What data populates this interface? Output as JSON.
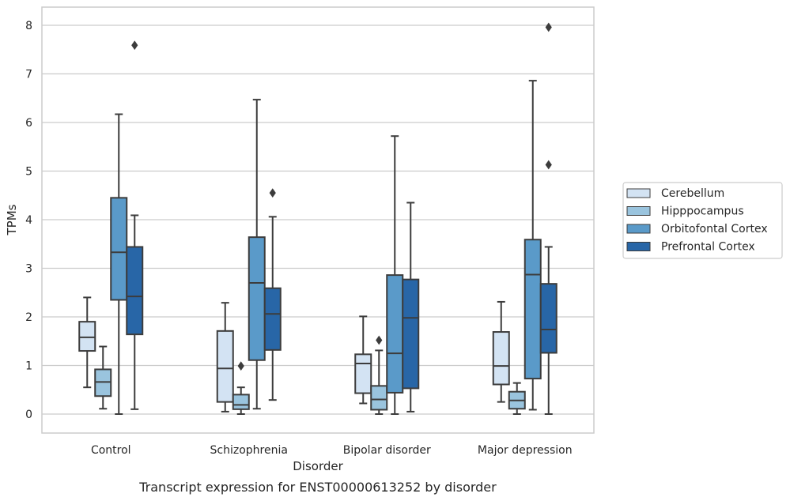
{
  "chart_data": {
    "type": "box",
    "caption": "Transcript expression for ENST00000613252 by disorder",
    "xlabel": "Disorder",
    "ylabel": "TPMs",
    "ylim": [
      -0.38,
      8.38
    ],
    "yticks": [
      0,
      1,
      2,
      3,
      4,
      5,
      6,
      7,
      8
    ],
    "grid": true,
    "legend_position": "right",
    "categories": [
      "Control",
      "Schizophrenia",
      "Bipolar disorder",
      "Major depression"
    ],
    "series": [
      {
        "name": "Cerebellum",
        "color": "#d3e3f3",
        "boxes": [
          {
            "whisker_low": 0.55,
            "q1": 1.3,
            "median": 1.58,
            "q3": 1.9,
            "whisker_high": 2.4,
            "outliers": []
          },
          {
            "whisker_low": 0.05,
            "q1": 0.25,
            "median": 0.94,
            "q3": 1.71,
            "whisker_high": 2.29,
            "outliers": []
          },
          {
            "whisker_low": 0.22,
            "q1": 0.43,
            "median": 1.04,
            "q3": 1.23,
            "whisker_high": 2.01,
            "outliers": []
          },
          {
            "whisker_low": 0.25,
            "q1": 0.61,
            "median": 0.99,
            "q3": 1.69,
            "whisker_high": 2.31,
            "outliers": []
          }
        ]
      },
      {
        "name": "Hipppocampus",
        "color": "#9ac4de",
        "boxes": [
          {
            "whisker_low": 0.11,
            "q1": 0.37,
            "median": 0.66,
            "q3": 0.92,
            "whisker_high": 1.39,
            "outliers": []
          },
          {
            "whisker_low": 0.0,
            "q1": 0.1,
            "median": 0.19,
            "q3": 0.4,
            "whisker_high": 0.55,
            "outliers": [
              0.99
            ]
          },
          {
            "whisker_low": 0.0,
            "q1": 0.09,
            "median": 0.3,
            "q3": 0.58,
            "whisker_high": 1.31,
            "outliers": [
              1.52
            ]
          },
          {
            "whisker_low": 0.0,
            "q1": 0.11,
            "median": 0.28,
            "q3": 0.46,
            "whisker_high": 0.64,
            "outliers": []
          }
        ]
      },
      {
        "name": "Orbitofontal Cortex",
        "color": "#5a9ac9",
        "boxes": [
          {
            "whisker_low": 0.0,
            "q1": 2.35,
            "median": 3.33,
            "q3": 4.45,
            "whisker_high": 6.17,
            "outliers": []
          },
          {
            "whisker_low": 0.11,
            "q1": 1.11,
            "median": 2.7,
            "q3": 3.64,
            "whisker_high": 6.47,
            "outliers": []
          },
          {
            "whisker_low": 0.0,
            "q1": 0.44,
            "median": 1.25,
            "q3": 2.86,
            "whisker_high": 5.72,
            "outliers": []
          },
          {
            "whisker_low": 0.09,
            "q1": 0.73,
            "median": 2.87,
            "q3": 3.59,
            "whisker_high": 6.86,
            "outliers": []
          }
        ]
      },
      {
        "name": "Prefrontal Cortex",
        "color": "#2866a7",
        "boxes": [
          {
            "whisker_low": 0.1,
            "q1": 1.64,
            "median": 2.42,
            "q3": 3.44,
            "whisker_high": 4.09,
            "outliers": [
              7.59
            ]
          },
          {
            "whisker_low": 0.29,
            "q1": 1.32,
            "median": 2.06,
            "q3": 2.59,
            "whisker_high": 4.06,
            "outliers": [
              4.55
            ]
          },
          {
            "whisker_low": 0.05,
            "q1": 0.53,
            "median": 1.98,
            "q3": 2.77,
            "whisker_high": 4.35,
            "outliers": []
          },
          {
            "whisker_low": 0.0,
            "q1": 1.26,
            "median": 1.74,
            "q3": 2.68,
            "whisker_high": 3.44,
            "outliers": [
              5.13,
              7.96
            ]
          }
        ]
      }
    ]
  }
}
